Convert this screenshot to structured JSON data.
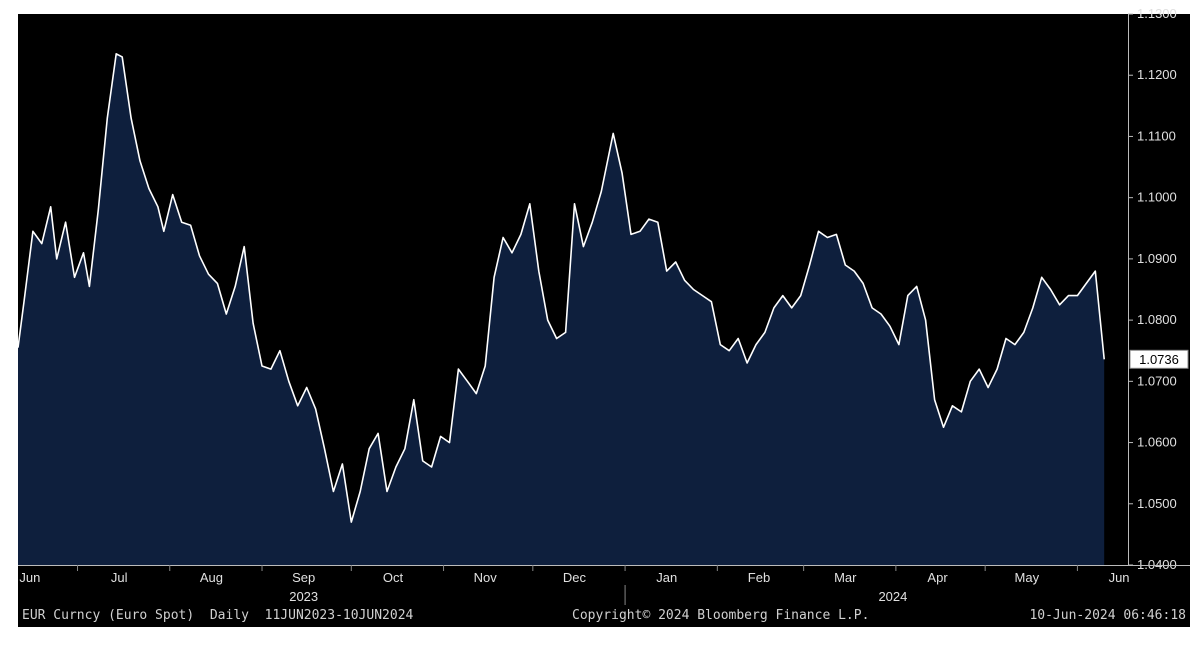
{
  "chart_data": {
    "type": "area",
    "title": "",
    "instrument": "EUR Curncy (Euro Spot)",
    "frequency": "Daily",
    "date_range": "11JUN2023-10JUN2024",
    "copyright": "Copyright© 2024 Bloomberg Finance L.P.",
    "timestamp": "10-Jun-2024 06:46:18",
    "last_value_label": "1.0736",
    "ylim": [
      1.04,
      1.13
    ],
    "y_ticks": [
      "1.0400",
      "1.0500",
      "1.0600",
      "1.0700",
      "1.0800",
      "1.0900",
      "1.1000",
      "1.1100",
      "1.1200",
      "1.1300"
    ],
    "month_ticks": [
      {
        "label": "Jun",
        "date": "2023-06-15"
      },
      {
        "label": "Jul",
        "date": "2023-07-15"
      },
      {
        "label": "Aug",
        "date": "2023-08-15"
      },
      {
        "label": "Sep",
        "date": "2023-09-15"
      },
      {
        "label": "Oct",
        "date": "2023-10-15"
      },
      {
        "label": "Nov",
        "date": "2023-11-15"
      },
      {
        "label": "Dec",
        "date": "2023-12-15"
      },
      {
        "label": "Jan",
        "date": "2024-01-15"
      },
      {
        "label": "Feb",
        "date": "2024-02-15"
      },
      {
        "label": "Mar",
        "date": "2024-03-15"
      },
      {
        "label": "Apr",
        "date": "2024-04-15"
      },
      {
        "label": "May",
        "date": "2024-05-15"
      },
      {
        "label": "Jun",
        "date": "2024-06-15"
      }
    ],
    "year_labels": [
      {
        "label": "2023",
        "date": "2023-09-15"
      },
      {
        "label": "2024",
        "date": "2024-03-31"
      }
    ],
    "year_divider_date": "2024-01-01",
    "x_range": [
      "2023-06-11",
      "2024-06-18"
    ],
    "series": [
      {
        "name": "EUR Curncy",
        "color": "#ffffff",
        "fill": "#0e1f3d",
        "x": [
          "2023-06-11",
          "2023-06-13",
          "2023-06-16",
          "2023-06-19",
          "2023-06-22",
          "2023-06-24",
          "2023-06-27",
          "2023-06-30",
          "2023-07-03",
          "2023-07-05",
          "2023-07-08",
          "2023-07-11",
          "2023-07-14",
          "2023-07-16",
          "2023-07-19",
          "2023-07-22",
          "2023-07-25",
          "2023-07-28",
          "2023-07-30",
          "2023-08-02",
          "2023-08-05",
          "2023-08-08",
          "2023-08-11",
          "2023-08-14",
          "2023-08-17",
          "2023-08-20",
          "2023-08-23",
          "2023-08-26",
          "2023-08-29",
          "2023-09-01",
          "2023-09-04",
          "2023-09-07",
          "2023-09-10",
          "2023-09-13",
          "2023-09-16",
          "2023-09-19",
          "2023-09-22",
          "2023-09-25",
          "2023-09-28",
          "2023-10-01",
          "2023-10-04",
          "2023-10-07",
          "2023-10-10",
          "2023-10-13",
          "2023-10-16",
          "2023-10-19",
          "2023-10-22",
          "2023-10-25",
          "2023-10-28",
          "2023-10-31",
          "2023-11-03",
          "2023-11-06",
          "2023-11-09",
          "2023-11-12",
          "2023-11-15",
          "2023-11-18",
          "2023-11-21",
          "2023-11-24",
          "2023-11-27",
          "2023-11-30",
          "2023-12-03",
          "2023-12-06",
          "2023-12-09",
          "2023-12-12",
          "2023-12-15",
          "2023-12-18",
          "2023-12-21",
          "2023-12-24",
          "2023-12-28",
          "2023-12-31",
          "2024-01-03",
          "2024-01-06",
          "2024-01-09",
          "2024-01-12",
          "2024-01-15",
          "2024-01-18",
          "2024-01-21",
          "2024-01-24",
          "2024-01-27",
          "2024-01-30",
          "2024-02-02",
          "2024-02-05",
          "2024-02-08",
          "2024-02-11",
          "2024-02-14",
          "2024-02-17",
          "2024-02-20",
          "2024-02-23",
          "2024-02-26",
          "2024-02-29",
          "2024-03-03",
          "2024-03-06",
          "2024-03-09",
          "2024-03-12",
          "2024-03-15",
          "2024-03-18",
          "2024-03-21",
          "2024-03-24",
          "2024-03-27",
          "2024-03-30",
          "2024-04-02",
          "2024-04-05",
          "2024-04-08",
          "2024-04-11",
          "2024-04-14",
          "2024-04-17",
          "2024-04-20",
          "2024-04-23",
          "2024-04-26",
          "2024-04-29",
          "2024-05-02",
          "2024-05-05",
          "2024-05-08",
          "2024-05-11",
          "2024-05-14",
          "2024-05-17",
          "2024-05-20",
          "2024-05-23",
          "2024-05-26",
          "2024-05-29",
          "2024-06-01",
          "2024-06-04",
          "2024-06-07",
          "2024-06-10"
        ],
        "values": [
          1.0755,
          1.083,
          1.0945,
          1.0925,
          1.0985,
          1.09,
          1.096,
          1.087,
          1.091,
          1.0855,
          1.098,
          1.113,
          1.1235,
          1.123,
          1.113,
          1.106,
          1.1015,
          1.0985,
          1.0945,
          1.1005,
          1.096,
          1.0955,
          1.0905,
          1.0875,
          1.086,
          1.081,
          1.0855,
          1.092,
          1.0795,
          1.0725,
          1.072,
          1.075,
          1.07,
          1.066,
          1.069,
          1.0655,
          1.059,
          1.052,
          1.0565,
          1.047,
          1.052,
          1.059,
          1.0615,
          1.052,
          1.056,
          1.059,
          1.067,
          1.057,
          1.056,
          1.061,
          1.06,
          1.072,
          1.07,
          1.068,
          1.0725,
          1.087,
          1.0935,
          1.091,
          1.094,
          1.099,
          1.088,
          1.08,
          1.077,
          1.078,
          1.099,
          1.092,
          1.096,
          1.101,
          1.1105,
          1.104,
          1.094,
          1.0945,
          1.0965,
          1.096,
          1.088,
          1.0895,
          1.0865,
          1.085,
          1.084,
          1.083,
          1.076,
          1.075,
          1.077,
          1.073,
          1.076,
          1.078,
          1.082,
          1.084,
          1.082,
          1.084,
          1.089,
          1.0945,
          1.0935,
          1.094,
          1.089,
          1.088,
          1.086,
          1.082,
          1.081,
          1.079,
          1.076,
          1.084,
          1.0855,
          1.08,
          1.067,
          1.0625,
          1.066,
          1.065,
          1.07,
          1.072,
          1.069,
          1.072,
          1.077,
          1.076,
          1.078,
          1.082,
          1.087,
          1.085,
          1.0825,
          1.084,
          1.084,
          1.086,
          1.088,
          1.0736
        ]
      }
    ]
  }
}
